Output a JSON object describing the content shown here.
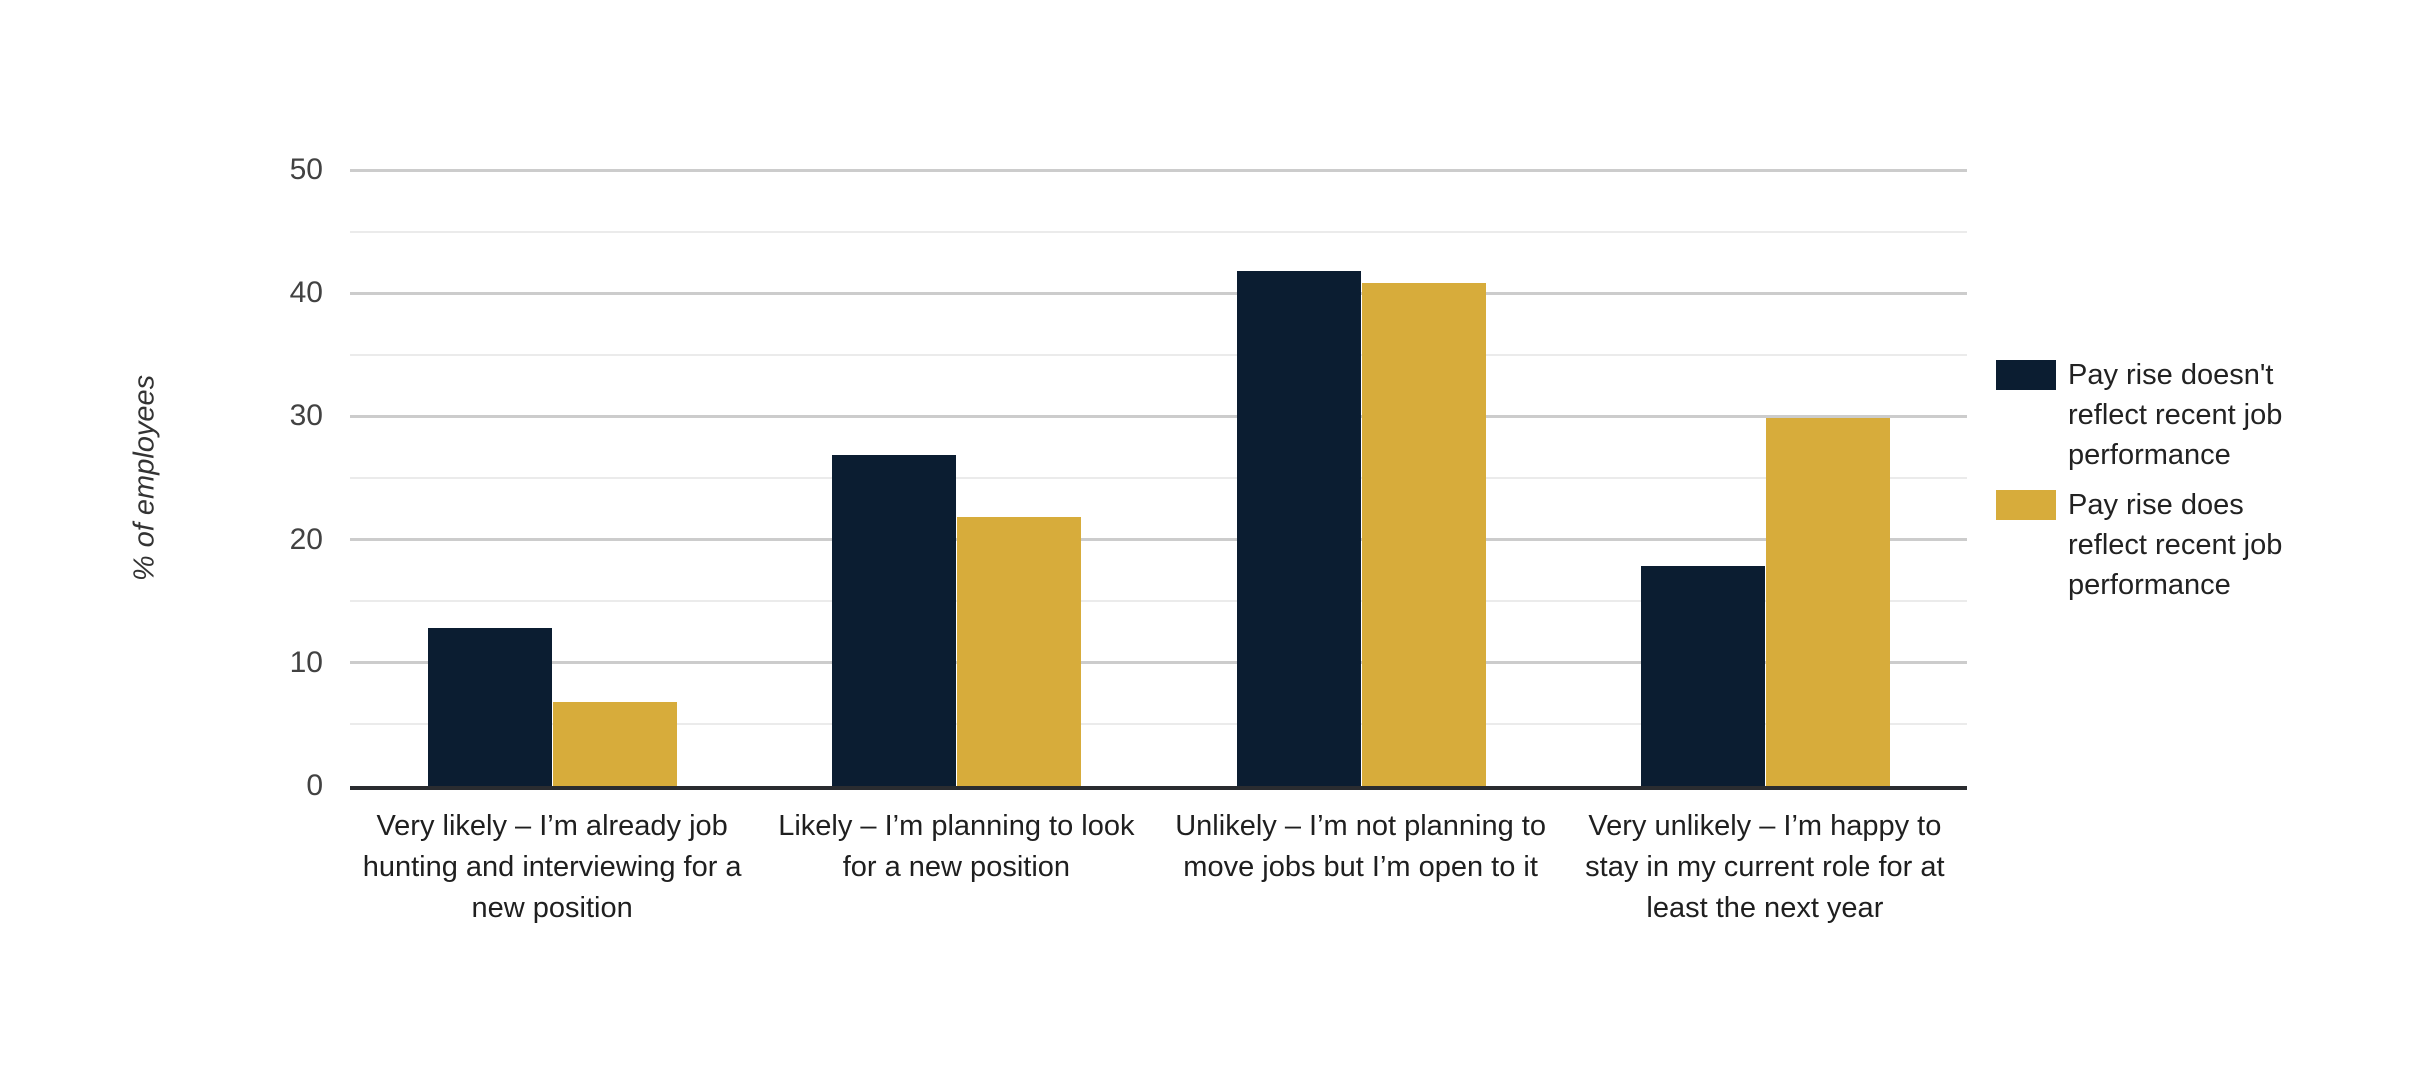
{
  "chart_data": {
    "type": "bar",
    "title": "",
    "ylabel": "% of employees",
    "xlabel": "",
    "categories": [
      "Very likely – I’m already job hunting and interviewing for a new position",
      "Likely – I’m planning to look for a new position",
      "Unlikely – I’m not planning to move jobs but I’m open to it",
      "Very unlikely – I’m happy to stay in my current role for at least the next year"
    ],
    "series": [
      {
        "name": "Pay rise doesn't reflect recent job performance",
        "color": "#0b1d31",
        "values": [
          13,
          27,
          42,
          18
        ]
      },
      {
        "name": "Pay rise does reflect recent job performance",
        "color": "#d7ac3b",
        "values": [
          7,
          22,
          41,
          30
        ]
      }
    ],
    "y_axis": {
      "min": 0,
      "max": 50,
      "major_step": 10,
      "minor_step": 5,
      "tick_labels": [
        "0",
        "10",
        "20",
        "30",
        "40",
        "50"
      ]
    },
    "legend_position": "right",
    "grid": true,
    "colors": {
      "background": "#ffffff",
      "grid_major": "#cccccc",
      "grid_minor": "#ebebeb",
      "axis_line": "#2a2c30",
      "tick_text": "#424242",
      "category_text": "#1f1f1f",
      "legend_text": "#222222",
      "y_title_text": "#333333"
    }
  }
}
